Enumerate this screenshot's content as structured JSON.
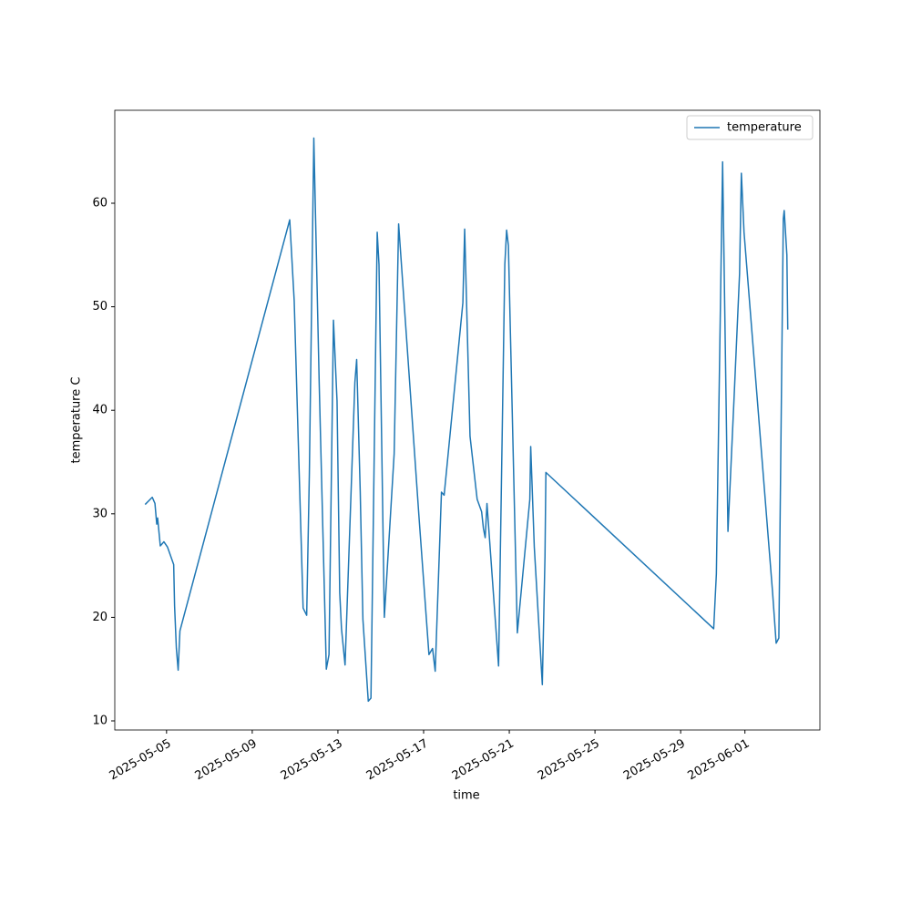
{
  "chart_data": {
    "type": "line",
    "x_label": "time",
    "y_label": "temperature C",
    "x": [
      "2025-05-04 00:00",
      "2025-05-04 08:00",
      "2025-05-04 11:00",
      "2025-05-04 13:00",
      "2025-05-04 14:00",
      "2025-05-04 17:00",
      "2025-05-04 21:00",
      "2025-05-05 01:00",
      "2025-05-05 08:00",
      "2025-05-05 09:00",
      "2025-05-05 11:00",
      "2025-05-05 13:00",
      "2025-05-05 15:00",
      "2025-05-10 18:00",
      "2025-05-10 23:00",
      "2025-05-11 09:00",
      "2025-05-11 13:00",
      "2025-05-11 16:00",
      "2025-05-11 21:00",
      "2025-05-12 03:00",
      "2025-05-12 11:00",
      "2025-05-12 14:00",
      "2025-05-12 19:00",
      "2025-05-12 23:00",
      "2025-05-13 02:00",
      "2025-05-13 04:00",
      "2025-05-13 08:00",
      "2025-05-13 19:00",
      "2025-05-13 21:00",
      "2025-05-14 01:00",
      "2025-05-14 04:00",
      "2025-05-14 10:00",
      "2025-05-14 13:00",
      "2025-05-14 20:00",
      "2025-05-14 22:00",
      "2025-05-15 04:00",
      "2025-05-15 15:00",
      "2025-05-15 20:00",
      "2025-05-16 19:00",
      "2025-05-17 06:00",
      "2025-05-17 10:00",
      "2025-05-17 13:00",
      "2025-05-17 20:00",
      "2025-05-17 23:00",
      "2025-05-18 20:00",
      "2025-05-18 22:00",
      "2025-05-19 04:00",
      "2025-05-19 12:00",
      "2025-05-19 17:00",
      "2025-05-19 19:00",
      "2025-05-19 21:00",
      "2025-05-19 23:00",
      "2025-05-20 12:00",
      "2025-05-20 19:00",
      "2025-05-20 21:00",
      "2025-05-20 23:00",
      "2025-05-21 09:00",
      "2025-05-21 23:00",
      "2025-05-22 00:00",
      "2025-05-22 04:00",
      "2025-05-22 13:00",
      "2025-05-22 16:00",
      "2025-05-22 17:00",
      "2025-05-30 13:00",
      "2025-05-30 16:00",
      "2025-05-30 23:00",
      "2025-05-31 05:00",
      "2025-05-31 12:00",
      "2025-05-31 18:00",
      "2025-05-31 20:00",
      "2025-05-31 23:00",
      "2025-06-02 07:00",
      "2025-06-02 11:00",
      "2025-06-02 14:00",
      "2025-06-02 19:00",
      "2025-06-02 20:00",
      "2025-06-02 23:00",
      "2025-06-03 00:00"
    ],
    "series": [
      {
        "name": "temperature",
        "color": "#1f77b4",
        "values": [
          30.9,
          31.6,
          31.0,
          29.0,
          29.6,
          26.9,
          27.3,
          26.8,
          25.1,
          21.1,
          17.0,
          14.9,
          18.7,
          58.4,
          50.6,
          20.9,
          20.2,
          33.9,
          66.3,
          42.7,
          15.0,
          16.4,
          48.7,
          40.9,
          22.4,
          18.9,
          15.4,
          42.7,
          44.9,
          32.1,
          19.8,
          11.9,
          12.2,
          57.2,
          54.1,
          20.0,
          35.8,
          58.0,
          29.5,
          16.4,
          17.0,
          14.8,
          32.1,
          31.8,
          50.4,
          57.5,
          37.5,
          31.4,
          30.2,
          28.6,
          27.7,
          31.0,
          15.3,
          54.1,
          57.4,
          55.9,
          18.5,
          31.4,
          36.5,
          26.8,
          13.5,
          25.9,
          34.0,
          18.9,
          24.2,
          64.0,
          28.3,
          41.5,
          53.2,
          62.9,
          57.2,
          22.4,
          17.5,
          18.0,
          58.5,
          59.3,
          55.0,
          47.8
        ]
      }
    ],
    "xlim": [
      "2025-05-02 14:00",
      "2025-06-04 12:00"
    ],
    "xticks": [
      "2025-05-05",
      "2025-05-09",
      "2025-05-13",
      "2025-05-17",
      "2025-05-21",
      "2025-05-25",
      "2025-05-29",
      "2025-06-01"
    ],
    "ylim": [
      9.12,
      68.98
    ],
    "yticks": [
      10,
      20,
      30,
      40,
      50,
      60
    ],
    "legend": "upper right"
  }
}
